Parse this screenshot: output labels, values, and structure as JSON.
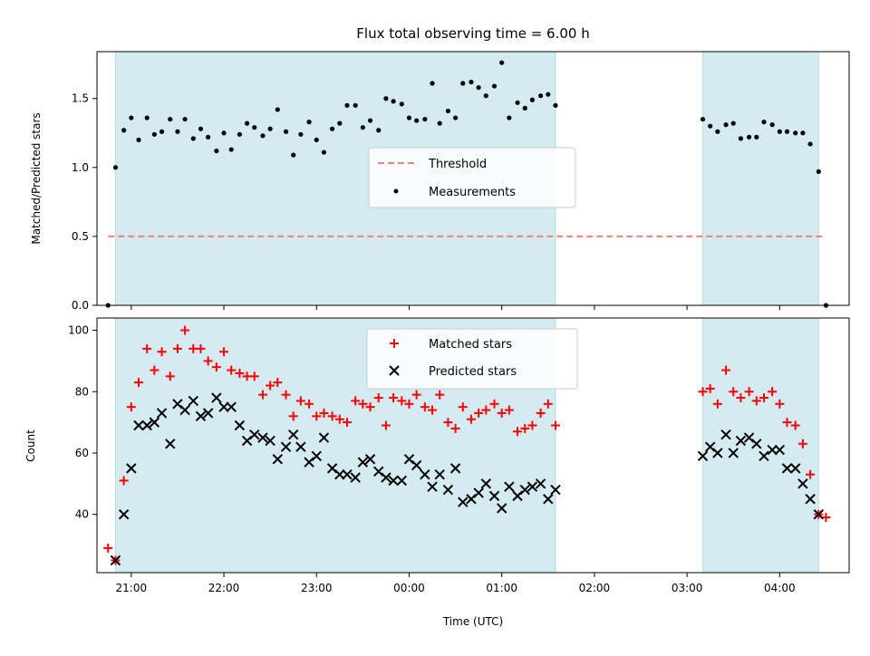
{
  "chart_data": [
    {
      "type": "scatter",
      "title": "Flux total observing time = 6.00 h",
      "xlabel": "",
      "ylabel": "Matched/Predicted stars",
      "ylim": [
        0,
        1.84
      ],
      "yticks": [
        "0.0",
        "0.5",
        "1.0",
        "1.5"
      ],
      "ytick_values": [
        0,
        0.5,
        1.0,
        1.5
      ],
      "xlim_hours": [
        20.63,
        28.75
      ],
      "shaded_spans_hours": [
        [
          20.83,
          25.58
        ],
        [
          27.17,
          28.42
        ]
      ],
      "shade_color": "#d4ebf1",
      "legend_position": "center",
      "legend": {
        "threshold": "Threshold",
        "measurements": "Measurements"
      },
      "threshold": {
        "value": 0.5,
        "x_range_hours": [
          20.75,
          28.5
        ],
        "color": "#f08080"
      },
      "measurements_color": "#000000",
      "series": [
        {
          "name": "Measurements",
          "x_hours": [
            20.75,
            20.83,
            20.92,
            21.0,
            21.08,
            21.17,
            21.25,
            21.33,
            21.42,
            21.5,
            21.58,
            21.67,
            21.75,
            21.83,
            21.92,
            22.0,
            22.08,
            22.17,
            22.25,
            22.33,
            22.42,
            22.5,
            22.58,
            22.67,
            22.75,
            22.83,
            22.92,
            23.0,
            23.08,
            23.17,
            23.25,
            23.33,
            23.42,
            23.5,
            23.58,
            23.67,
            23.75,
            23.83,
            23.92,
            24.0,
            24.08,
            24.17,
            24.25,
            24.33,
            24.42,
            24.5,
            24.58,
            24.67,
            24.75,
            24.83,
            24.92,
            25.0,
            25.08,
            25.17,
            25.25,
            25.33,
            25.42,
            25.5,
            25.58,
            27.17,
            27.25,
            27.33,
            27.42,
            27.5,
            27.58,
            27.67,
            27.75,
            27.83,
            27.92,
            28.0,
            28.08,
            28.17,
            28.25,
            28.33,
            28.42,
            28.5
          ],
          "values": [
            0.0,
            1.0,
            1.27,
            1.36,
            1.2,
            1.36,
            1.24,
            1.26,
            1.35,
            1.26,
            1.35,
            1.21,
            1.28,
            1.22,
            1.12,
            1.25,
            1.13,
            1.24,
            1.32,
            1.29,
            1.23,
            1.28,
            1.42,
            1.26,
            1.09,
            1.24,
            1.33,
            1.2,
            1.11,
            1.28,
            1.32,
            1.45,
            1.45,
            1.29,
            1.34,
            1.27,
            1.5,
            1.48,
            1.46,
            1.36,
            1.34,
            1.35,
            1.61,
            1.32,
            1.41,
            1.36,
            1.61,
            1.62,
            1.58,
            1.52,
            1.59,
            1.76,
            1.36,
            1.47,
            1.43,
            1.49,
            1.52,
            1.53,
            1.45,
            1.35,
            1.3,
            1.26,
            1.31,
            1.32,
            1.21,
            1.22,
            1.22,
            1.33,
            1.31,
            1.26,
            1.26,
            1.25,
            1.25,
            1.17,
            0.97,
            0.0
          ]
        }
      ]
    },
    {
      "type": "scatter",
      "title": "",
      "xlabel": "Time (UTC)",
      "ylabel": "Count",
      "ylim": [
        21,
        104
      ],
      "yticks": [
        "40",
        "60",
        "80",
        "100"
      ],
      "ytick_values": [
        40,
        60,
        80,
        100
      ],
      "xlim_hours": [
        20.63,
        28.75
      ],
      "xtick_hours": [
        21,
        22,
        23,
        24,
        25,
        26,
        27,
        28
      ],
      "xticks": [
        "21:00",
        "22:00",
        "23:00",
        "00:00",
        "01:00",
        "02:00",
        "03:00",
        "04:00"
      ],
      "shaded_spans_hours": [
        [
          20.83,
          25.58
        ],
        [
          27.17,
          28.42
        ]
      ],
      "shade_color": "#d4ebf1",
      "legend_position": "upper center",
      "legend": {
        "matched": "Matched stars",
        "predicted": "Predicted stars"
      },
      "matched_color": "#ff0000",
      "predicted_color": "#000000",
      "series": [
        {
          "name": "Matched stars",
          "marker": "plus",
          "x_hours": [
            20.75,
            20.83,
            20.92,
            21.0,
            21.08,
            21.17,
            21.25,
            21.33,
            21.42,
            21.5,
            21.58,
            21.67,
            21.75,
            21.83,
            21.92,
            22.0,
            22.08,
            22.17,
            22.25,
            22.33,
            22.42,
            22.5,
            22.58,
            22.67,
            22.75,
            22.83,
            22.92,
            23.0,
            23.08,
            23.17,
            23.25,
            23.33,
            23.42,
            23.5,
            23.58,
            23.67,
            23.75,
            23.83,
            23.92,
            24.0,
            24.08,
            24.17,
            24.25,
            24.33,
            24.42,
            24.5,
            24.58,
            24.67,
            24.75,
            24.83,
            24.92,
            25.0,
            25.08,
            25.17,
            25.25,
            25.33,
            25.42,
            25.5,
            25.58,
            27.17,
            27.25,
            27.33,
            27.42,
            27.5,
            27.58,
            27.67,
            27.75,
            27.83,
            27.92,
            28.0,
            28.08,
            28.17,
            28.25,
            28.33,
            28.42,
            28.5
          ],
          "values": [
            29,
            25,
            51,
            75,
            83,
            94,
            87,
            93,
            85,
            94,
            100,
            94,
            94,
            90,
            88,
            93,
            87,
            86,
            85,
            85,
            79,
            82,
            83,
            79,
            72,
            77,
            76,
            72,
            73,
            72,
            71,
            70,
            77,
            76,
            75,
            78,
            69,
            78,
            77,
            76,
            79,
            75,
            74,
            79,
            70,
            68,
            75,
            71,
            73,
            74,
            76,
            73,
            74,
            67,
            68,
            69,
            73,
            76,
            69,
            80,
            81,
            76,
            87,
            80,
            78,
            80,
            77,
            78,
            80,
            76,
            70,
            69,
            63,
            53,
            40,
            39
          ]
        },
        {
          "name": "Predicted stars",
          "marker": "x",
          "x_hours": [
            20.83,
            20.92,
            21.0,
            21.08,
            21.17,
            21.25,
            21.33,
            21.42,
            21.5,
            21.58,
            21.67,
            21.75,
            21.83,
            21.92,
            22.0,
            22.08,
            22.17,
            22.25,
            22.33,
            22.42,
            22.5,
            22.58,
            22.67,
            22.75,
            22.83,
            22.92,
            23.0,
            23.08,
            23.17,
            23.25,
            23.33,
            23.42,
            23.5,
            23.58,
            23.67,
            23.75,
            23.83,
            23.92,
            24.0,
            24.08,
            24.17,
            24.25,
            24.33,
            24.42,
            24.5,
            24.58,
            24.67,
            24.75,
            24.83,
            24.92,
            25.0,
            25.08,
            25.17,
            25.25,
            25.33,
            25.42,
            25.5,
            25.58,
            27.17,
            27.25,
            27.33,
            27.42,
            27.5,
            27.58,
            27.67,
            27.75,
            27.83,
            27.92,
            28.0,
            28.08,
            28.17,
            28.25,
            28.33,
            28.42
          ],
          "values": [
            25,
            40,
            55,
            69,
            69,
            70,
            73,
            63,
            76,
            74,
            77,
            72,
            73,
            78,
            75,
            75,
            69,
            64,
            66,
            65,
            64,
            58,
            62,
            66,
            62,
            57,
            59,
            65,
            55,
            53,
            53,
            52,
            57,
            58,
            54,
            52,
            51,
            51,
            58,
            56,
            53,
            49,
            53,
            48,
            55,
            44,
            45,
            47,
            50,
            46,
            42,
            49,
            46,
            48,
            49,
            50,
            45,
            48,
            59,
            62,
            60,
            66,
            60,
            64,
            65,
            63,
            59,
            61,
            61,
            55,
            55,
            50,
            45,
            40
          ]
        }
      ]
    }
  ]
}
